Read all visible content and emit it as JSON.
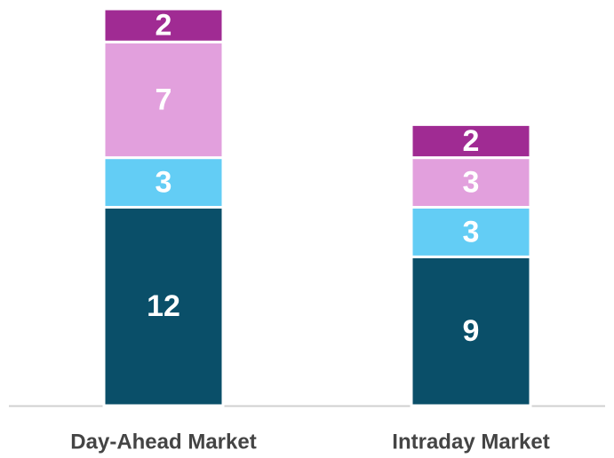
{
  "chart_data": {
    "type": "stacked_bar",
    "categories": [
      "Day-Ahead Market",
      "Intraday Market"
    ],
    "series": [
      {
        "color": "#0a4f69",
        "values": [
          12,
          9
        ]
      },
      {
        "color": "#63cdf5",
        "values": [
          3,
          3
        ]
      },
      {
        "color": "#e2a0dd",
        "values": [
          7,
          3
        ]
      },
      {
        "color": "#a02b93",
        "values": [
          2,
          2
        ]
      }
    ]
  }
}
